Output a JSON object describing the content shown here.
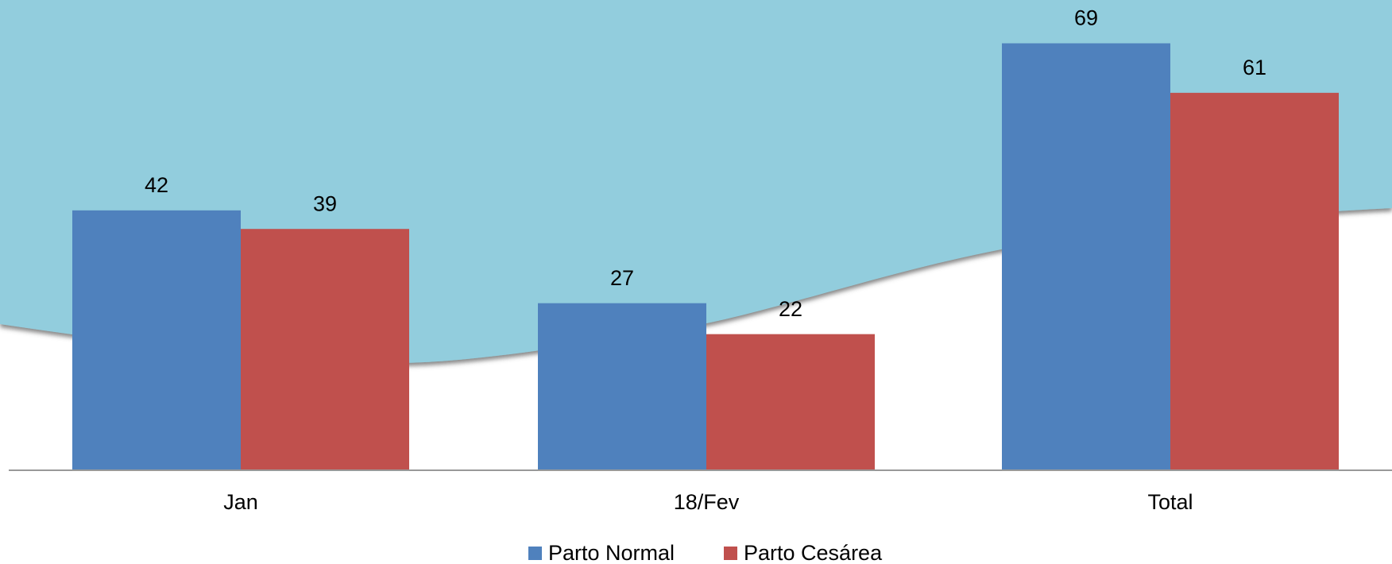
{
  "chart_data": {
    "type": "bar",
    "categories": [
      "Jan",
      "18/Fev",
      "Total"
    ],
    "series": [
      {
        "name": "Parto Normal",
        "color": "#4f81bd",
        "values": [
          42,
          27,
          69
        ]
      },
      {
        "name": "Parto Cesárea",
        "color": "#c0504d",
        "values": [
          39,
          22,
          61
        ]
      }
    ],
    "ylim": [
      0,
      76
    ]
  }
}
